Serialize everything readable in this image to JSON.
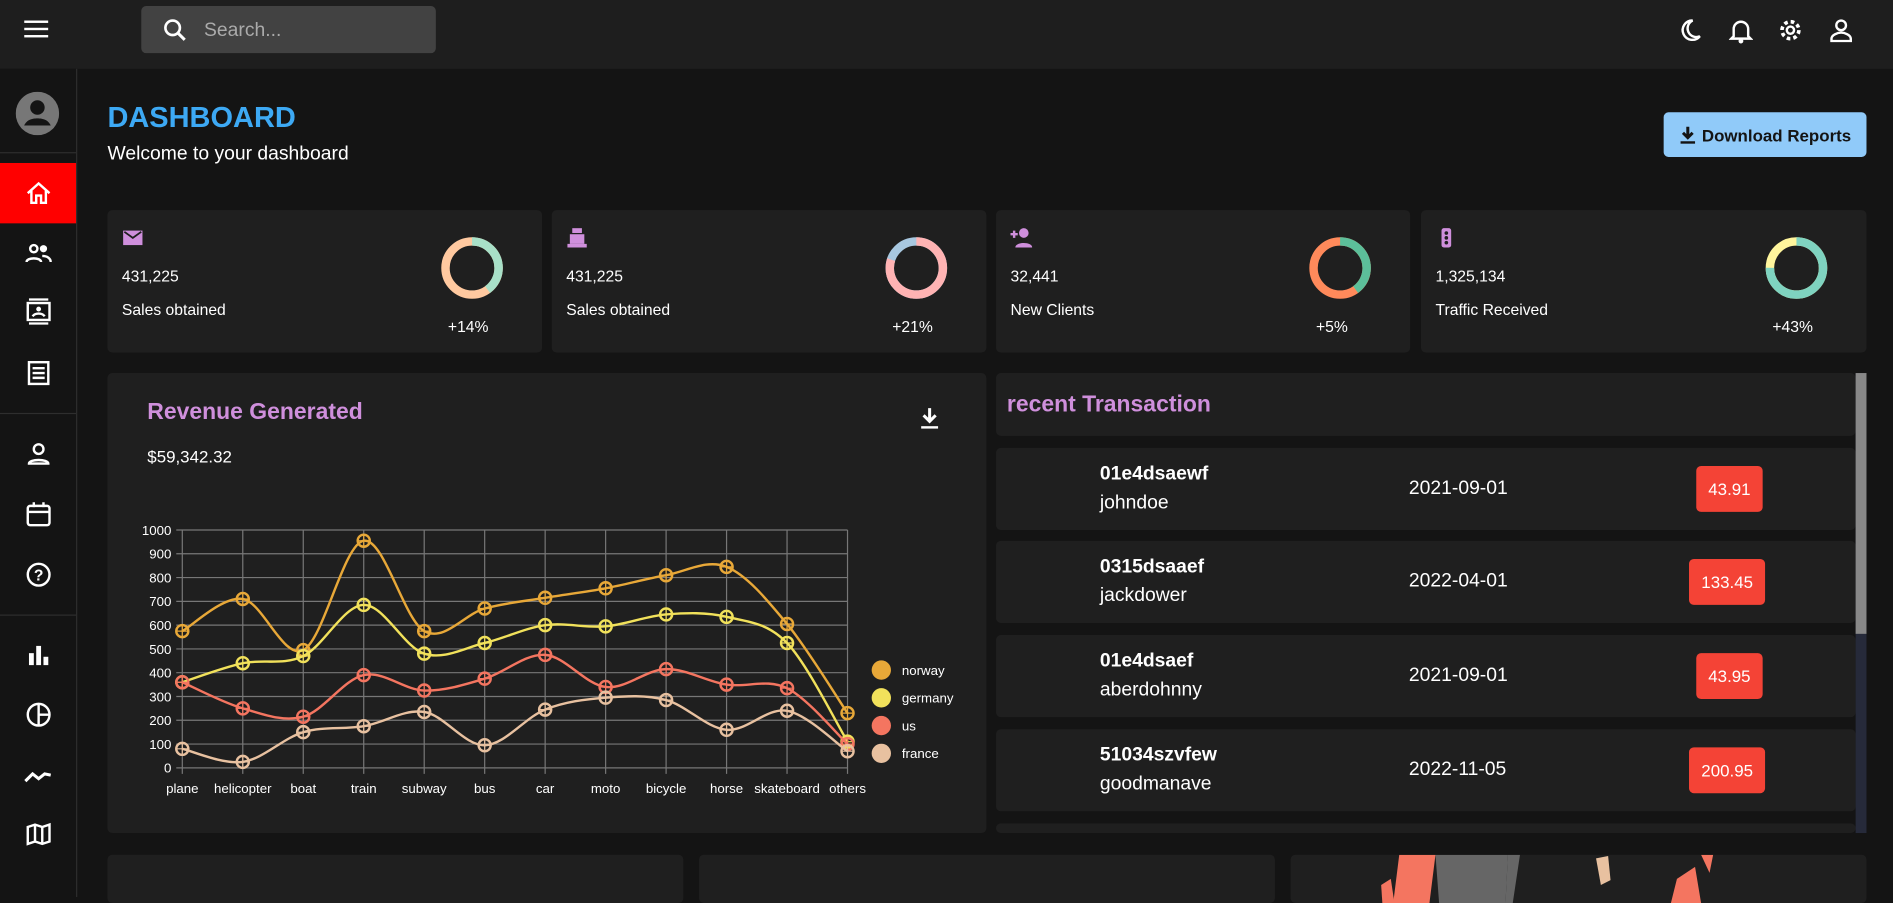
{
  "topbar": {
    "search_placeholder": "Search...",
    "icons": [
      "menu-icon",
      "search-icon",
      "dark-mode-icon",
      "notifications-icon",
      "settings-icon",
      "person-icon"
    ]
  },
  "sidebar": {
    "active": "home",
    "items": [
      "home",
      "team",
      "contacts",
      "invoices",
      "profile",
      "calendar",
      "faq",
      "bar-chart",
      "pie-chart",
      "line-chart",
      "geography"
    ]
  },
  "header": {
    "title": "DASHBOARD",
    "subtitle": "Welcome to your dashboard",
    "download_label": "Download Reports"
  },
  "colors": {
    "title": "#3da9f4",
    "accent_purple": "#cf8fdc",
    "active_nav": "#ff0000",
    "cost_badge": "#f44336",
    "download_bg": "#90caf9"
  },
  "stats": [
    {
      "icon": "email-icon",
      "value": "431,225",
      "label": "Sales obtained",
      "increase": "+14%",
      "progress": 0.4,
      "colors": [
        "#a8e0c8",
        "#ffc9a0"
      ]
    },
    {
      "icon": "point-of-sale-icon",
      "value": "431,225",
      "label": "Sales obtained",
      "increase": "+21%",
      "progress": 0.8,
      "colors": [
        "#ffb3b3",
        "#a8c8e0"
      ]
    },
    {
      "icon": "person-add-icon",
      "value": "32,441",
      "label": "New Clients",
      "increase": "+5%",
      "progress": 0.4,
      "colors": [
        "#5cbf9a",
        "#ff8a5b"
      ]
    },
    {
      "icon": "traffic-icon",
      "value": "1,325,134",
      "label": "Traffic Received",
      "increase": "+43%",
      "progress": 0.75,
      "colors": [
        "#7fd3c0",
        "#fff59d"
      ]
    }
  ],
  "revenue": {
    "title": "Revenue Generated",
    "amount": "$59,342.32"
  },
  "transactions": {
    "title": "recent Transaction",
    "rows": [
      {
        "id": "01e4dsaewf",
        "user": "johndoe",
        "date": "2021-09-01",
        "cost": "43.91"
      },
      {
        "id": "0315dsaaef",
        "user": "jackdower",
        "date": "2022-04-01",
        "cost": "133.45"
      },
      {
        "id": "01e4dsaef",
        "user": "aberdohnny",
        "date": "2021-09-01",
        "cost": "43.95"
      },
      {
        "id": "51034szvfew",
        "user": "goodmanave",
        "date": "2022-11-05",
        "cost": "200.95"
      }
    ]
  },
  "chart_data": {
    "type": "line",
    "categories": [
      "plane",
      "helicopter",
      "boat",
      "train",
      "subway",
      "bus",
      "car",
      "moto",
      "bicycle",
      "horse",
      "skateboard",
      "others"
    ],
    "ylim": [
      0,
      1000
    ],
    "yticks": [
      0,
      100,
      200,
      300,
      400,
      500,
      600,
      700,
      800,
      900,
      1000
    ],
    "grid": true,
    "legend": "right",
    "series": [
      {
        "name": "norway",
        "color": "#e8a838",
        "values": [
          575,
          710,
          495,
          955,
          575,
          670,
          715,
          755,
          810,
          845,
          605,
          230
        ]
      },
      {
        "name": "germany",
        "color": "#f1e15b",
        "values": [
          360,
          440,
          470,
          685,
          480,
          525,
          600,
          595,
          645,
          635,
          525,
          110
        ]
      },
      {
        "name": "us",
        "color": "#f47560",
        "values": [
          360,
          250,
          215,
          390,
          325,
          375,
          475,
          340,
          415,
          350,
          335,
          100
        ]
      },
      {
        "name": "france",
        "color": "#e8c1a0",
        "values": [
          80,
          25,
          150,
          175,
          235,
          95,
          245,
          295,
          285,
          160,
          240,
          70
        ]
      }
    ]
  }
}
